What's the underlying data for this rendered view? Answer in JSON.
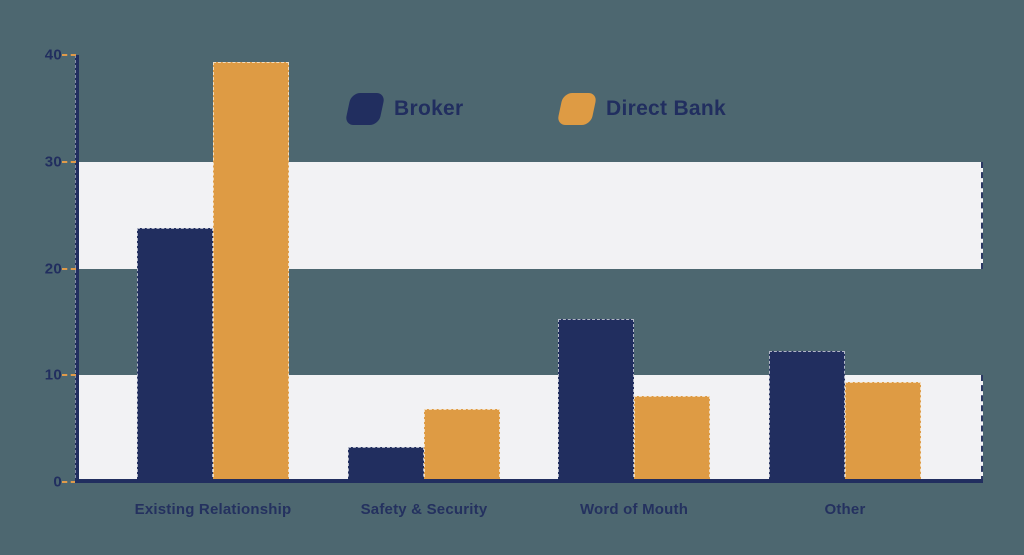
{
  "chart_data": {
    "type": "bar",
    "title": "",
    "xlabel": "",
    "ylabel": "",
    "categories": [
      "Existing Relationship",
      "Safety & Security",
      "Word of Mouth",
      "Other"
    ],
    "series": [
      {
        "name": "Broker",
        "color": "#212e5f",
        "values": [
          23.8,
          3.3,
          15.3,
          12.3
        ]
      },
      {
        "name": "Direct Bank",
        "color": "#de9b44",
        "values": [
          39.3,
          6.8,
          8.1,
          9.4
        ]
      }
    ],
    "ylim": [
      0,
      40
    ],
    "yticks": [
      0,
      10,
      20,
      30,
      40
    ],
    "band_ranges": [
      [
        0,
        10
      ],
      [
        20,
        30
      ]
    ],
    "grid": "alternating horizontal white bands",
    "legend_position": "top-center"
  },
  "colors": {
    "background": "#4d6770",
    "band": "#f2f2f4",
    "axis": "#212e5f",
    "tick_dash": "#e09a4a",
    "broker": "#212e5f",
    "direct_bank": "#de9b44"
  }
}
